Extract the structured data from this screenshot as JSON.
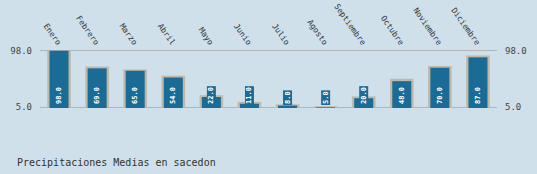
{
  "chart_data": {
    "type": "bar",
    "title": "Precipitaciones Medias en sacedon",
    "categories": [
      "Enero",
      "Febrero",
      "Marzo",
      "Abril",
      "Mayo",
      "Junio",
      "Julio",
      "Agosto",
      "Septiembre",
      "Octubre",
      "Noviembre",
      "Diciembre"
    ],
    "series": [
      {
        "color": "#c0b8a8",
        "values": [
          98,
          72,
          67,
          57,
          25,
          14,
          10,
          7,
          23,
          52,
          73,
          90
        ]
      },
      {
        "color": "#1a6b96",
        "values": [
          98,
          69,
          65,
          54,
          22,
          11,
          8,
          5,
          20,
          48,
          70,
          87
        ],
        "value_labels": [
          "98.0",
          "69.0",
          "65.0",
          "54.0",
          "22.0",
          "11.0",
          "8.0",
          "5.0",
          "20.0",
          "48.0",
          "70.0",
          "87.0"
        ]
      }
    ],
    "ylim": [
      4.0,
      102.0
    ],
    "yticks": [
      {
        "value": 5.0,
        "label": "5.0"
      },
      {
        "value": 98.0,
        "label": "98.0"
      }
    ],
    "y2lim": [
      4.0,
      102.0
    ],
    "y2ticks": [
      {
        "value": 5.0,
        "label": "5.0"
      },
      {
        "value": 98.0,
        "label": "98.0"
      }
    ],
    "grid": true,
    "data_labels": true
  }
}
